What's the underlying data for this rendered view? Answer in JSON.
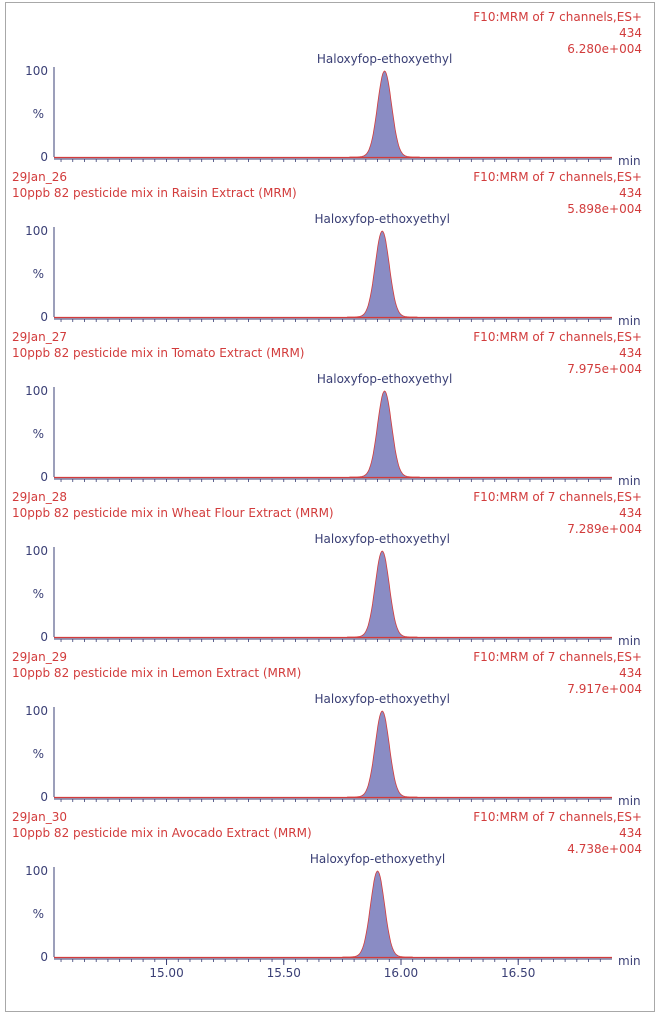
{
  "chart_data": {
    "type": "area",
    "x_unit": "min",
    "x_ticks": [
      15.0,
      15.5,
      16.0,
      16.5
    ],
    "x_tick_labels": [
      "15.00",
      "15.50",
      "16.00",
      "16.50"
    ],
    "xlim": [
      14.52,
      16.9
    ],
    "y_tick_labels": [
      "100",
      "%",
      "0"
    ],
    "ylim": [
      0,
      100
    ],
    "colors": {
      "text": "#d23c3c",
      "axis": "#3a3f75",
      "peak_fill": "#8a8cc4",
      "baseline": "#d23c3c"
    },
    "panels": [
      {
        "sample": "",
        "description": "",
        "function": "F10:MRM of 7 channels,ES+",
        "mass": "434",
        "intensity": "6.280e+004",
        "compound": "Haloxyfop-ethoxyethyl",
        "peak_rt": 15.93,
        "peak_width": 0.03
      },
      {
        "sample": "29Jan_26",
        "description": "10ppb 82 pesticide mix in Raisin Extract (MRM)",
        "function": "F10:MRM of 7 channels,ES+",
        "mass": "434",
        "intensity": "5.898e+004",
        "compound": "Haloxyfop-ethoxyethyl",
        "peak_rt": 15.92,
        "peak_width": 0.03
      },
      {
        "sample": "29Jan_27",
        "description": "10ppb 82 pesticide mix in Tomato Extract (MRM)",
        "function": "F10:MRM of 7 channels,ES+",
        "mass": "434",
        "intensity": "7.975e+004",
        "compound": "Haloxyfop-ethoxyethyl",
        "peak_rt": 15.93,
        "peak_width": 0.03
      },
      {
        "sample": "29Jan_28",
        "description": "10ppb 82 pesticide mix in Wheat Flour Extract (MRM)",
        "function": "F10:MRM of 7 channels,ES+",
        "mass": "434",
        "intensity": "7.289e+004",
        "compound": "Haloxyfop-ethoxyethyl",
        "peak_rt": 15.92,
        "peak_width": 0.03
      },
      {
        "sample": "29Jan_29",
        "description": "10ppb 82 pesticide mix in Lemon Extract (MRM)",
        "function": "F10:MRM of 7 channels,ES+",
        "mass": "434",
        "intensity": "7.917e+004",
        "compound": "Haloxyfop-ethoxyethyl",
        "peak_rt": 15.92,
        "peak_width": 0.03
      },
      {
        "sample": "29Jan_30",
        "description": "10ppb 82 pesticide mix in Avocado Extract (MRM)",
        "function": "F10:MRM of 7 channels,ES+",
        "mass": "434",
        "intensity": "4.738e+004",
        "compound": "Haloxyfop-ethoxyethyl",
        "peak_rt": 15.9,
        "peak_width": 0.03
      }
    ]
  }
}
